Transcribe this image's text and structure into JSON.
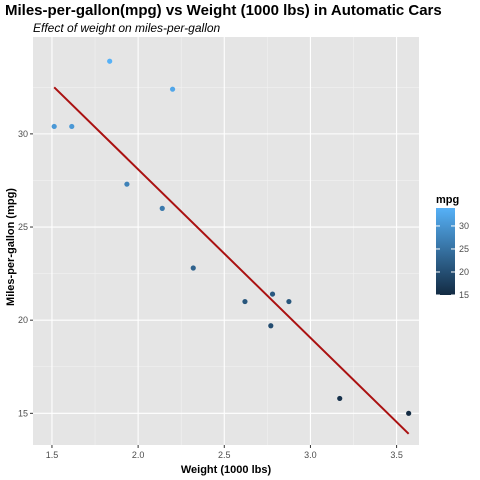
{
  "chart_data": {
    "type": "scatter",
    "title": "Miles-per-gallon(mpg) vs Weight (1000 lbs) in Automatic Cars",
    "subtitle": "Effect of weight on miles-per-gallon",
    "xlabel": "Weight (1000 lbs)",
    "ylabel": "Miles-per-gallon (mpg)",
    "xlim": [
      1.39,
      3.63
    ],
    "ylim": [
      13.3,
      35.2
    ],
    "x_ticks": [
      1.5,
      2.0,
      2.5,
      3.0,
      3.5
    ],
    "x_tick_labels": [
      "1.5",
      "2.0",
      "2.5",
      "3.0",
      "3.5"
    ],
    "y_ticks": [
      15,
      20,
      25,
      30
    ],
    "y_tick_labels": [
      "15",
      "20",
      "25",
      "30"
    ],
    "grid": true,
    "points": [
      {
        "x": 1.513,
        "y": 30.4
      },
      {
        "x": 1.615,
        "y": 30.4
      },
      {
        "x": 1.835,
        "y": 33.9
      },
      {
        "x": 1.935,
        "y": 27.3
      },
      {
        "x": 2.14,
        "y": 26.0
      },
      {
        "x": 2.2,
        "y": 32.4
      },
      {
        "x": 2.32,
        "y": 22.8
      },
      {
        "x": 2.62,
        "y": 21.0
      },
      {
        "x": 2.77,
        "y": 19.7
      },
      {
        "x": 2.78,
        "y": 21.4
      },
      {
        "x": 2.875,
        "y": 21.0
      },
      {
        "x": 3.17,
        "y": 15.8
      },
      {
        "x": 3.57,
        "y": 15.0
      }
    ],
    "trend_line": {
      "x": [
        1.513,
        3.57
      ],
      "y": [
        32.5,
        13.9
      ],
      "color": "#aa1111"
    },
    "color_scale": {
      "title": "mpg",
      "low": 15,
      "high": 33.9,
      "low_color": "#132B43",
      "high_color": "#56B1F7",
      "ticks": [
        15,
        20,
        25,
        30
      ],
      "tick_labels": [
        "15",
        "20",
        "25",
        "30"
      ]
    },
    "legend_position": "right",
    "panel_background": "#e5e5e5"
  }
}
